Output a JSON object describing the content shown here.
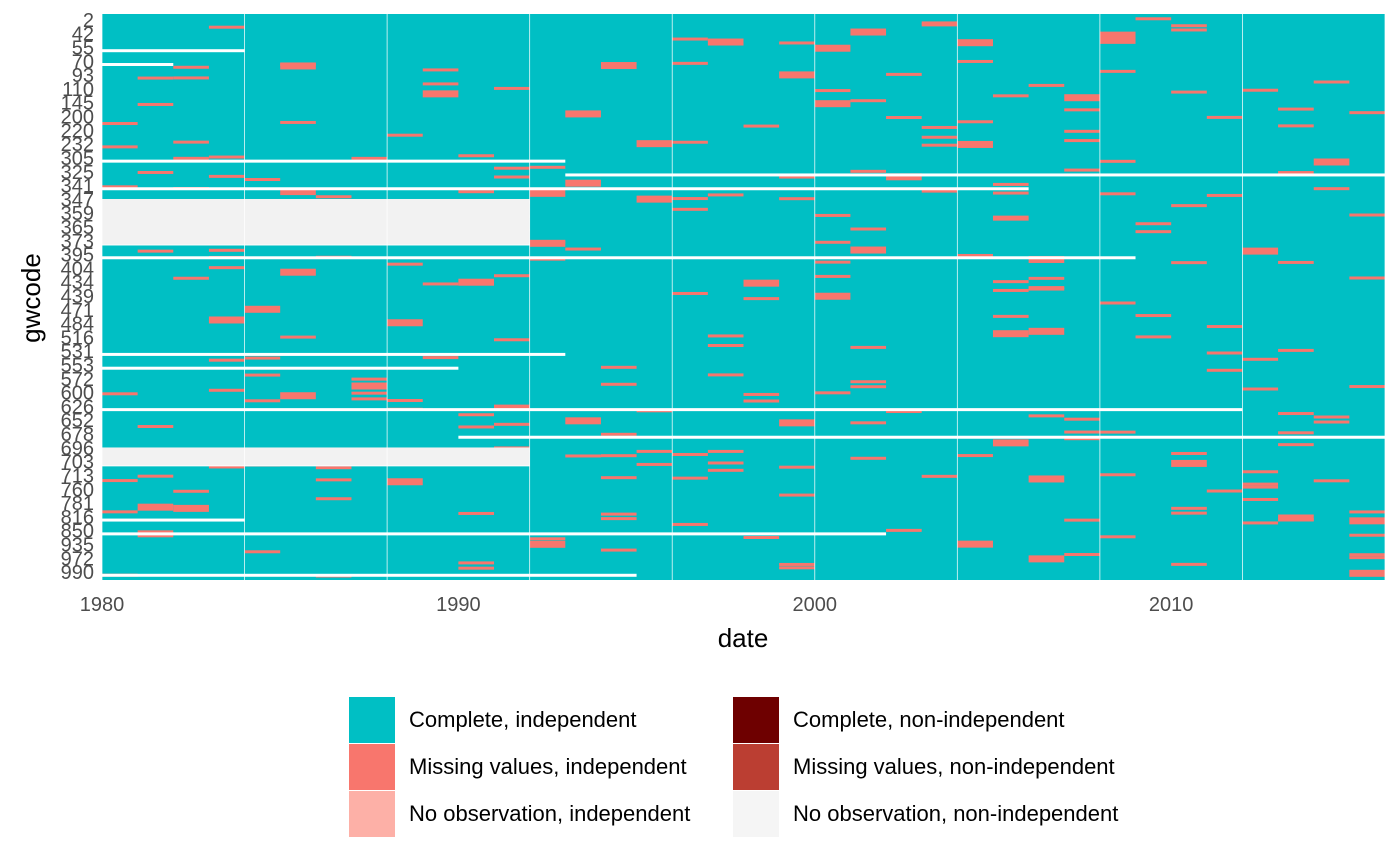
{
  "chart_data": {
    "type": "heatmap",
    "xlabel": "date",
    "ylabel": "gwcode",
    "x_range": [
      1980,
      2016
    ],
    "x_ticks": [
      1980,
      1990,
      2000,
      2010
    ],
    "y_tick_labels": [
      "2",
      "42",
      "55",
      "70",
      "93",
      "110",
      "145",
      "200",
      "220",
      "232",
      "305",
      "325",
      "341",
      "347",
      "359",
      "365",
      "373",
      "395",
      "404",
      "434",
      "439",
      "471",
      "484",
      "516",
      "531",
      "553",
      "572",
      "600",
      "626",
      "652",
      "678",
      "696",
      "703",
      "713",
      "760",
      "781",
      "816",
      "850",
      "935",
      "972",
      "990"
    ],
    "legend": [
      {
        "label": "Complete, independent",
        "color": "#00BFC4"
      },
      {
        "label": "Complete, non-independent",
        "color": "#6E0000"
      },
      {
        "label": "Missing values, independent",
        "color": "#F8766D"
      },
      {
        "label": "Missing values, non-independent",
        "color": "#BB3E32"
      },
      {
        "label": "No observation, independent",
        "color": "#FDB0A7"
      },
      {
        "label": "No observation, non-independent",
        "color": "#F5F5F5"
      }
    ],
    "colors": {
      "complete": "#00BFC4",
      "missing": "#F8766D",
      "no_observation": "#F2F2F2",
      "gap": "#FFFFFF"
    },
    "grid": true,
    "legend_position": "bottom",
    "no_observation_periods": [
      {
        "gwcode": "55",
        "end": 1984
      },
      {
        "gwcode": "70",
        "end": 1982
      },
      {
        "gwcode": "305",
        "start": 1980,
        "end": 1993
      },
      {
        "gwcode": "325",
        "start": 1993,
        "end": 2016
      },
      {
        "gwcode": "341",
        "start": 1980,
        "end": 2006
      },
      {
        "gwcode": "347",
        "start": 1980,
        "end": 1992
      },
      {
        "gwcode": "359",
        "start": 1980,
        "end": 1992
      },
      {
        "gwcode": "365",
        "start": 1980,
        "end": 1992
      },
      {
        "gwcode": "373",
        "start": 1980,
        "end": 1992
      },
      {
        "gwcode": "395",
        "start": 1980,
        "end": 2009
      },
      {
        "gwcode": "531",
        "start": 1980,
        "end": 1993
      },
      {
        "gwcode": "553",
        "start": 1980,
        "end": 1990
      },
      {
        "gwcode": "626",
        "start": 1980,
        "end": 2012
      },
      {
        "gwcode": "678",
        "start": 1990,
        "end": 2016
      },
      {
        "gwcode": "696",
        "start": 1980,
        "end": 1992
      },
      {
        "gwcode": "703",
        "start": 1980,
        "end": 1992
      },
      {
        "gwcode": "816",
        "start": 1980,
        "end": 1984
      },
      {
        "gwcode": "850",
        "start": 1980,
        "end": 2002
      },
      {
        "gwcode": "990",
        "start": 1980,
        "end": 1995
      }
    ]
  }
}
